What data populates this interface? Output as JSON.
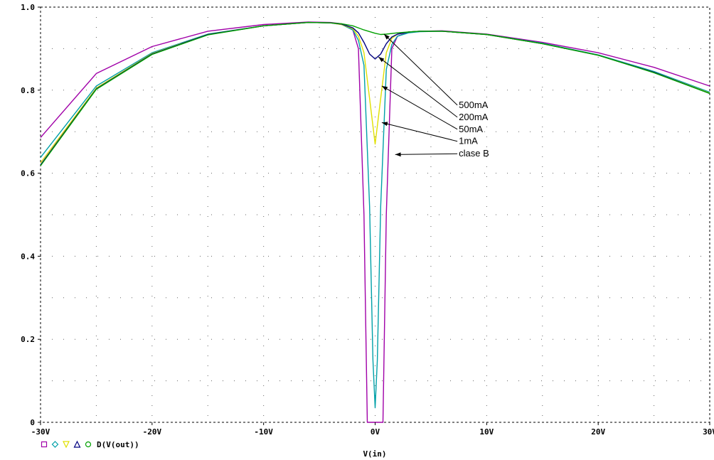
{
  "chart_data": {
    "type": "line",
    "xlabel": "V(in)",
    "ylabel": "",
    "xlim": [
      -30,
      30
    ],
    "ylim": [
      0,
      1.0
    ],
    "x_ticks": [
      {
        "value": -30,
        "label": "-30V"
      },
      {
        "value": -20,
        "label": "-20V"
      },
      {
        "value": -10,
        "label": "-10V"
      },
      {
        "value": 0,
        "label": "0V"
      },
      {
        "value": 10,
        "label": "10V"
      },
      {
        "value": 20,
        "label": "20V"
      },
      {
        "value": 30,
        "label": "30V"
      }
    ],
    "y_ticks": [
      {
        "value": 0,
        "label": "0"
      },
      {
        "value": 0.2,
        "label": "0.2"
      },
      {
        "value": 0.4,
        "label": "0.4"
      },
      {
        "value": 0.6,
        "label": "0.6"
      },
      {
        "value": 0.8,
        "label": "0.8"
      },
      {
        "value": 1.0,
        "label": "1.0"
      }
    ],
    "grid": "dotted",
    "legend_label": "D(V(out))",
    "series": [
      {
        "name": "clase B",
        "color": "#a000a8",
        "marker": "square",
        "x": [
          -30,
          -25,
          -20,
          -15,
          -10,
          -6,
          -4,
          -3,
          -2,
          -1.5,
          -1,
          -0.7,
          0.7,
          1,
          1.5,
          2,
          3,
          4,
          6,
          10,
          15,
          20,
          25,
          30
        ],
        "y": [
          0.686,
          0.84,
          0.905,
          0.942,
          0.958,
          0.964,
          0.963,
          0.96,
          0.945,
          0.9,
          0.5,
          0.0,
          0.0,
          0.5,
          0.9,
          0.93,
          0.94,
          0.942,
          0.943,
          0.935,
          0.915,
          0.89,
          0.855,
          0.81
        ]
      },
      {
        "name": "1mA",
        "color": "#00a0a8",
        "marker": "diamond",
        "x": [
          -30,
          -25,
          -20,
          -15,
          -10,
          -6,
          -4,
          -3,
          -2,
          -1.5,
          -1,
          -0.5,
          -0.2,
          0,
          0.2,
          0.5,
          1,
          1.5,
          2,
          3,
          4,
          6,
          10,
          15,
          20,
          25,
          30
        ],
        "y": [
          0.638,
          0.81,
          0.89,
          0.935,
          0.955,
          0.963,
          0.962,
          0.958,
          0.945,
          0.92,
          0.86,
          0.52,
          0.15,
          0.035,
          0.15,
          0.52,
          0.85,
          0.91,
          0.93,
          0.938,
          0.941,
          0.942,
          0.934,
          0.913,
          0.885,
          0.845,
          0.795
        ]
      },
      {
        "name": "50mA",
        "color": "#e0e000",
        "marker": "triangle-down",
        "x": [
          -30,
          -25,
          -20,
          -15,
          -10,
          -6,
          -4,
          -3,
          -2,
          -1.5,
          -1,
          -0.5,
          0,
          0.5,
          1,
          1.5,
          2,
          3,
          4,
          6,
          10,
          15,
          20,
          25,
          30
        ],
        "y": [
          0.625,
          0.805,
          0.888,
          0.934,
          0.955,
          0.963,
          0.962,
          0.958,
          0.948,
          0.93,
          0.89,
          0.78,
          0.67,
          0.78,
          0.89,
          0.925,
          0.935,
          0.94,
          0.942,
          0.942,
          0.934,
          0.912,
          0.884,
          0.843,
          0.793
        ]
      },
      {
        "name": "200mA",
        "color": "#000080",
        "marker": "triangle-up",
        "x": [
          -30,
          -25,
          -20,
          -15,
          -10,
          -6,
          -4,
          -3,
          -2,
          -1.5,
          -1,
          -0.5,
          0,
          0.5,
          1,
          1.5,
          2,
          3,
          4,
          6,
          10,
          15,
          20,
          25,
          30
        ],
        "y": [
          0.62,
          0.803,
          0.887,
          0.934,
          0.955,
          0.963,
          0.962,
          0.959,
          0.95,
          0.938,
          0.915,
          0.887,
          0.875,
          0.887,
          0.912,
          0.928,
          0.935,
          0.94,
          0.942,
          0.942,
          0.934,
          0.912,
          0.884,
          0.843,
          0.792
        ]
      },
      {
        "name": "500mA",
        "color": "#00a000",
        "marker": "circle",
        "x": [
          -30,
          -25,
          -20,
          -15,
          -10,
          -6,
          -4,
          -3,
          -2,
          -1,
          0,
          0.5,
          1,
          2,
          3,
          4,
          6,
          10,
          15,
          20,
          25,
          30
        ],
        "y": [
          0.618,
          0.802,
          0.886,
          0.933,
          0.955,
          0.963,
          0.962,
          0.96,
          0.955,
          0.945,
          0.937,
          0.934,
          0.935,
          0.938,
          0.94,
          0.942,
          0.942,
          0.934,
          0.912,
          0.884,
          0.842,
          0.792
        ]
      }
    ],
    "annotations": [
      {
        "text": "500mA",
        "text_x": 7.5,
        "text_y": 0.757,
        "target_x": 0.8,
        "target_y": 0.935
      },
      {
        "text": "200mA",
        "text_x": 7.5,
        "text_y": 0.728,
        "target_x": 0.3,
        "target_y": 0.88
      },
      {
        "text": "50mA",
        "text_x": 7.5,
        "text_y": 0.699,
        "target_x": 0.6,
        "target_y": 0.81
      },
      {
        "text": "1mA",
        "text_x": 7.5,
        "text_y": 0.67,
        "target_x": 0.6,
        "target_y": 0.722
      },
      {
        "text": "clase B",
        "text_x": 7.5,
        "text_y": 0.64,
        "target_x": 1.8,
        "target_y": 0.645
      }
    ]
  }
}
